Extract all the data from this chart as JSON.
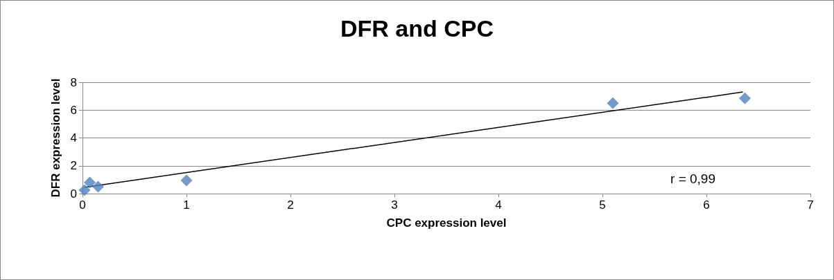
{
  "chart_data": {
    "type": "scatter",
    "title": "DFR and CPC",
    "xlabel": "CPC expression level",
    "ylabel": "DFR expression level",
    "series": [
      {
        "color": "#4f81bd",
        "marker": "diamond",
        "x": [
          0.02,
          0.07,
          0.15,
          1.0,
          5.1,
          6.37
        ],
        "values": [
          0.25,
          0.8,
          0.5,
          0.95,
          6.5,
          6.85
        ]
      },
      {
        "type": "line",
        "color": "#000000",
        "marker": "none",
        "x": [
          0.02,
          6.35
        ],
        "values": [
          0.45,
          7.3
        ]
      }
    ],
    "xlim": [
      0,
      7
    ],
    "xticks": [
      0,
      1,
      2,
      3,
      4,
      5,
      6,
      7
    ],
    "ylim": [
      0,
      8
    ],
    "yticks": [
      0,
      2,
      4,
      6,
      8
    ],
    "grid": "y",
    "annotations": [
      "r = 0,99"
    ]
  }
}
